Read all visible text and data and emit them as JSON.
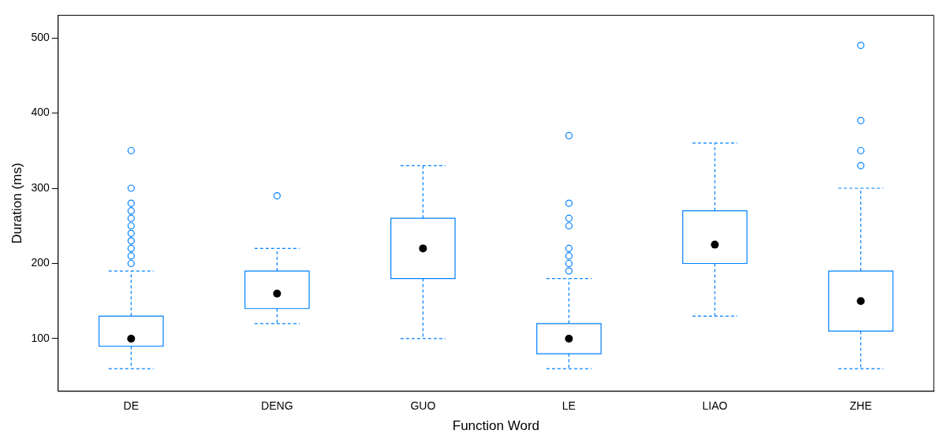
{
  "chart_data": {
    "type": "box",
    "xlabel": "Function Word",
    "ylabel": "Duration (ms)",
    "categories": [
      "DE",
      "DENG",
      "GUO",
      "LE",
      "LIAO",
      "ZHE"
    ],
    "color": "#0080ff",
    "ylim": [
      30,
      530
    ],
    "yticks": [
      100,
      200,
      300,
      400,
      500
    ],
    "grid": false,
    "legend": false,
    "boxes": [
      {
        "low": 60,
        "q1": 90,
        "median": 100,
        "q3": 130,
        "high": 190,
        "outliers": [
          200,
          210,
          220,
          230,
          240,
          250,
          260,
          270,
          280,
          300,
          350
        ]
      },
      {
        "low": 120,
        "q1": 140,
        "median": 160,
        "q3": 190,
        "high": 220,
        "outliers": [
          290
        ]
      },
      {
        "low": 100,
        "q1": 180,
        "median": 220,
        "q3": 260,
        "high": 330
      },
      {
        "low": 60,
        "q1": 80,
        "median": 100,
        "q3": 120,
        "high": 180,
        "outliers": [
          190,
          200,
          210,
          220,
          250,
          260,
          280,
          370
        ]
      },
      {
        "low": 130,
        "q1": 200,
        "median": 225,
        "q3": 270,
        "high": 360
      },
      {
        "low": 60,
        "q1": 110,
        "median": 150,
        "q3": 190,
        "high": 300,
        "outliers": [
          330,
          350,
          390,
          490
        ]
      }
    ]
  }
}
